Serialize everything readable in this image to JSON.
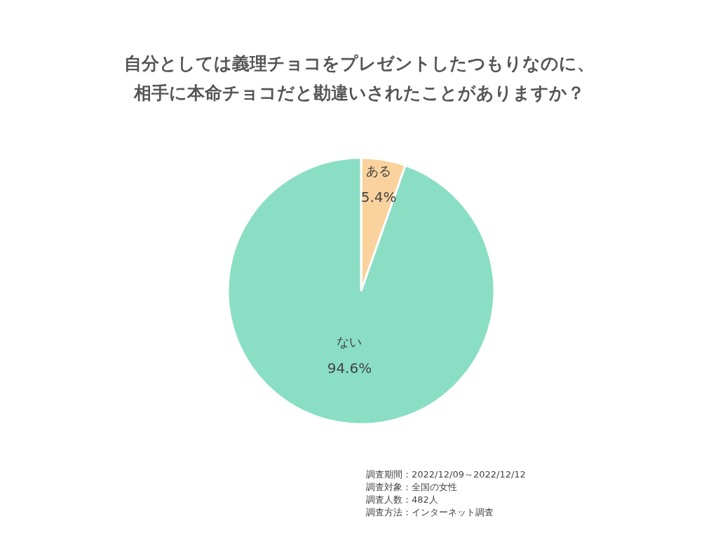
{
  "chart_data": {
    "type": "pie",
    "title": "自分としては義理チョコをプレゼントしたつもりなのに、相手に本命チョコだと勘違いされたことがありますか？",
    "categories": [
      "ある",
      "ない"
    ],
    "values": [
      5.4,
      94.6
    ],
    "colors": [
      "#f9d29d",
      "#8adec4"
    ],
    "value_labels": [
      "5.4%",
      "94.6%"
    ],
    "annotations": [
      "調査期間：2022/12/09～2022/12/12",
      "調査対象：全国の女性",
      "調査人数：482人",
      "調査方法：インターネット調査"
    ]
  }
}
